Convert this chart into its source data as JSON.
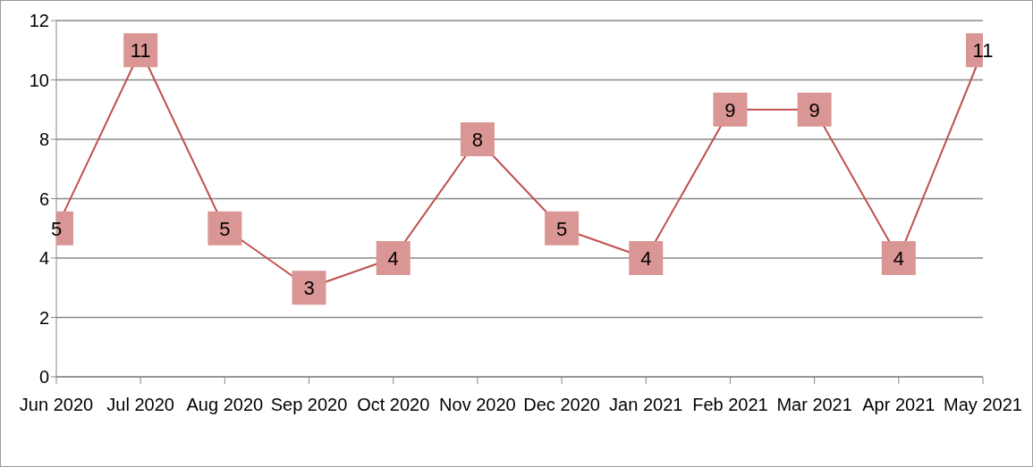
{
  "chart_data": {
    "type": "line",
    "categories": [
      "Jun 2020",
      "Jul 2020",
      "Aug 2020",
      "Sep 2020",
      "Oct 2020",
      "Nov 2020",
      "Dec 2020",
      "Jan 2021",
      "Feb 2021",
      "Mar 2021",
      "Apr 2021",
      "May 2021"
    ],
    "series": [
      {
        "color": "#c0504d",
        "values": [
          5,
          11,
          5,
          3,
          4,
          8,
          5,
          4,
          9,
          9,
          4,
          11
        ]
      }
    ],
    "ylim": [
      0,
      12
    ],
    "yticks": [
      0,
      2,
      4,
      6,
      8,
      10,
      12
    ],
    "grid": "y",
    "data_labels": true,
    "marker": "square",
    "line_style": "solid"
  }
}
